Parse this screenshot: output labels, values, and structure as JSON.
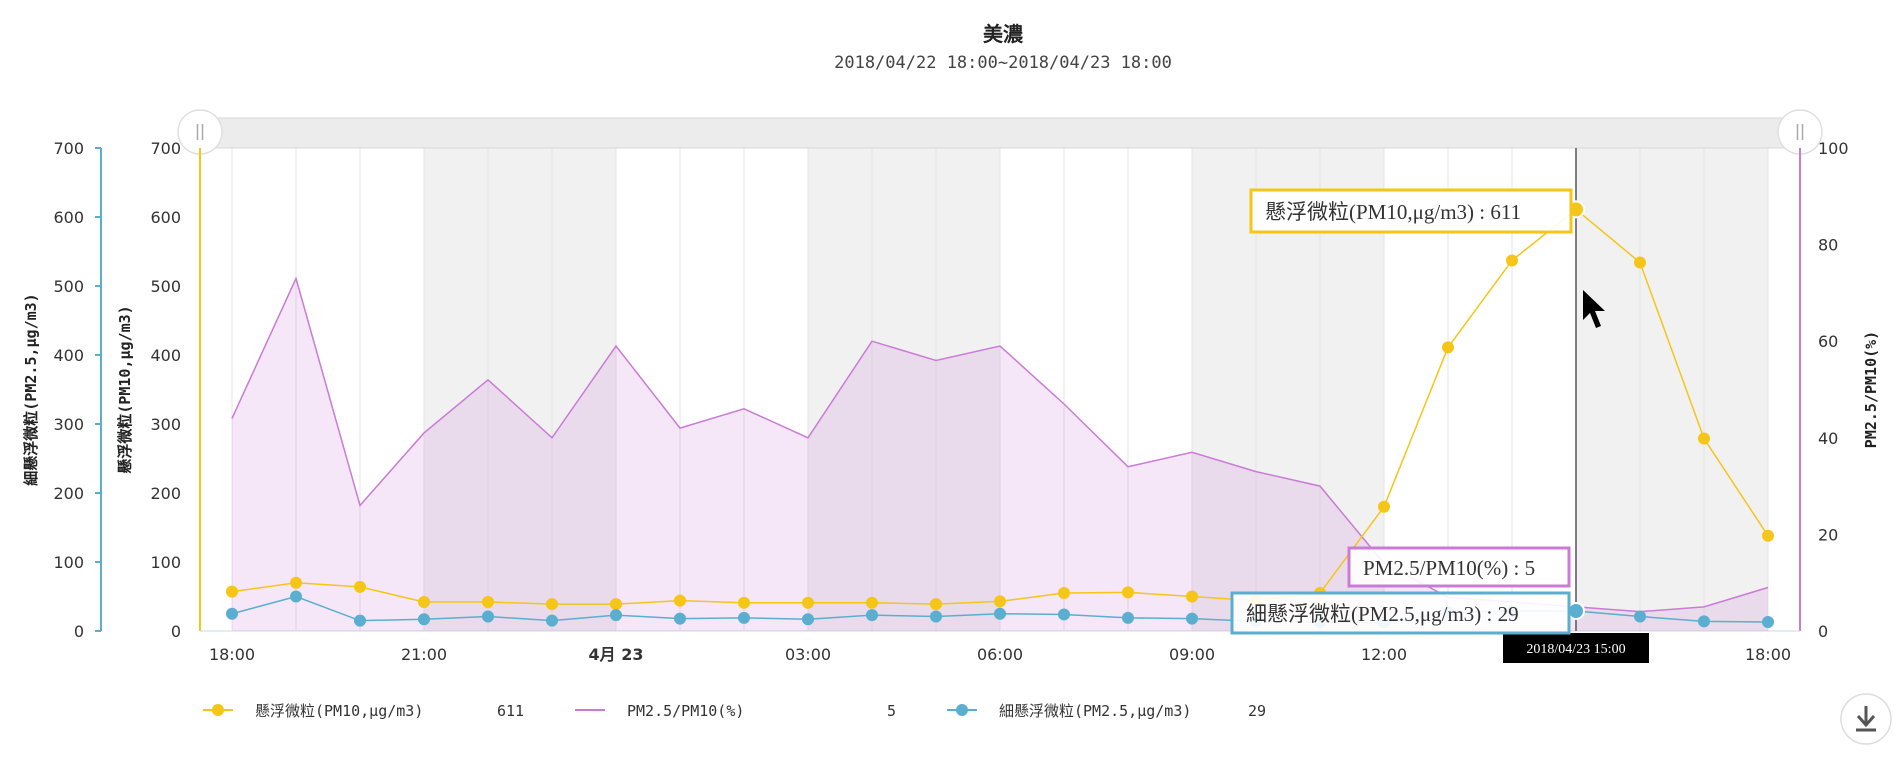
{
  "chart_data": {
    "type": "line",
    "title": "美濃",
    "subtitle": "2018/04/22 18:00~2018/04/23 18:00",
    "x": [
      "18:00",
      "19:00",
      "20:00",
      "21:00",
      "22:00",
      "23:00",
      "00:00",
      "01:00",
      "02:00",
      "03:00",
      "04:00",
      "05:00",
      "06:00",
      "07:00",
      "08:00",
      "09:00",
      "10:00",
      "11:00",
      "12:00",
      "13:00",
      "14:00",
      "15:00",
      "16:00",
      "17:00",
      "18:00"
    ],
    "xtick_labels": [
      "18:00",
      "21:00",
      "4月 23",
      "03:00",
      "06:00",
      "09:00",
      "12:00",
      "15:00",
      "18:00"
    ],
    "y_axes": {
      "pm25": {
        "label": "細懸浮微粒(PM2.5,μg/m3)",
        "ylim": [
          0,
          700
        ],
        "ticks": [
          0,
          100,
          200,
          300,
          400,
          500,
          600,
          700
        ],
        "color": "#5aaed0"
      },
      "pm10": {
        "label": "懸浮微粒(PM10,μg/m3)",
        "ylim": [
          0,
          700
        ],
        "ticks": [
          0,
          100,
          200,
          300,
          400,
          500,
          600,
          700
        ],
        "color": "#f5c518"
      },
      "ratio": {
        "label": "PM2.5/PM10(%)",
        "ylim": [
          0,
          100
        ],
        "ticks": [
          0,
          20,
          40,
          60,
          80,
          100
        ],
        "color": "#c97bd6"
      }
    },
    "series": [
      {
        "name": "懸浮微粒(PM10,μg/m3)",
        "axis": "pm10",
        "kind": "line-markers",
        "color": "#f5c518",
        "values": [
          57,
          70,
          64,
          42,
          42,
          39,
          39,
          44,
          41,
          41,
          41,
          39,
          43,
          55,
          56,
          50,
          44,
          55,
          180,
          411,
          537,
          611,
          534,
          279,
          138
        ]
      },
      {
        "name": "PM2.5/PM10(%)",
        "axis": "ratio",
        "kind": "area",
        "color": "#c97bd6",
        "values": [
          44,
          73,
          26,
          41,
          52,
          40,
          59,
          42,
          46,
          40,
          60,
          56,
          59,
          47,
          34,
          37,
          33,
          30,
          14,
          7,
          6,
          5,
          4,
          5,
          9
        ]
      },
      {
        "name": "細懸浮微粒(PM2.5,μg/m3)",
        "axis": "pm25",
        "kind": "line-markers",
        "color": "#5aaed0",
        "values": [
          25,
          50,
          15,
          17,
          21,
          15,
          23,
          18,
          19,
          17,
          23,
          21,
          25,
          24,
          19,
          18,
          14,
          13,
          12,
          27,
          29,
          29,
          21,
          14,
          13
        ]
      }
    ],
    "grid": true,
    "legend_position": "bottom",
    "legend": [
      {
        "name": "懸浮微粒(PM10,μg/m3)",
        "value": "611"
      },
      {
        "name": "PM2.5/PM10(%)",
        "value": "5"
      },
      {
        "name": "細懸浮微粒(PM2.5,μg/m3)",
        "value": "29"
      }
    ],
    "hover": {
      "index": 21,
      "time_label": "2018/04/23 15:00",
      "tooltips": [
        {
          "text": "懸浮微粒(PM10,μg/m3) : 611",
          "series": 0
        },
        {
          "text": "PM2.5/PM10(%) : 5",
          "series": 1
        },
        {
          "text": "細懸浮微粒(PM2.5,μg/m3) : 29",
          "series": 2
        }
      ]
    }
  },
  "ui": {
    "download_icon": "download-icon",
    "range_handle_icon": "range-handle-icon"
  }
}
